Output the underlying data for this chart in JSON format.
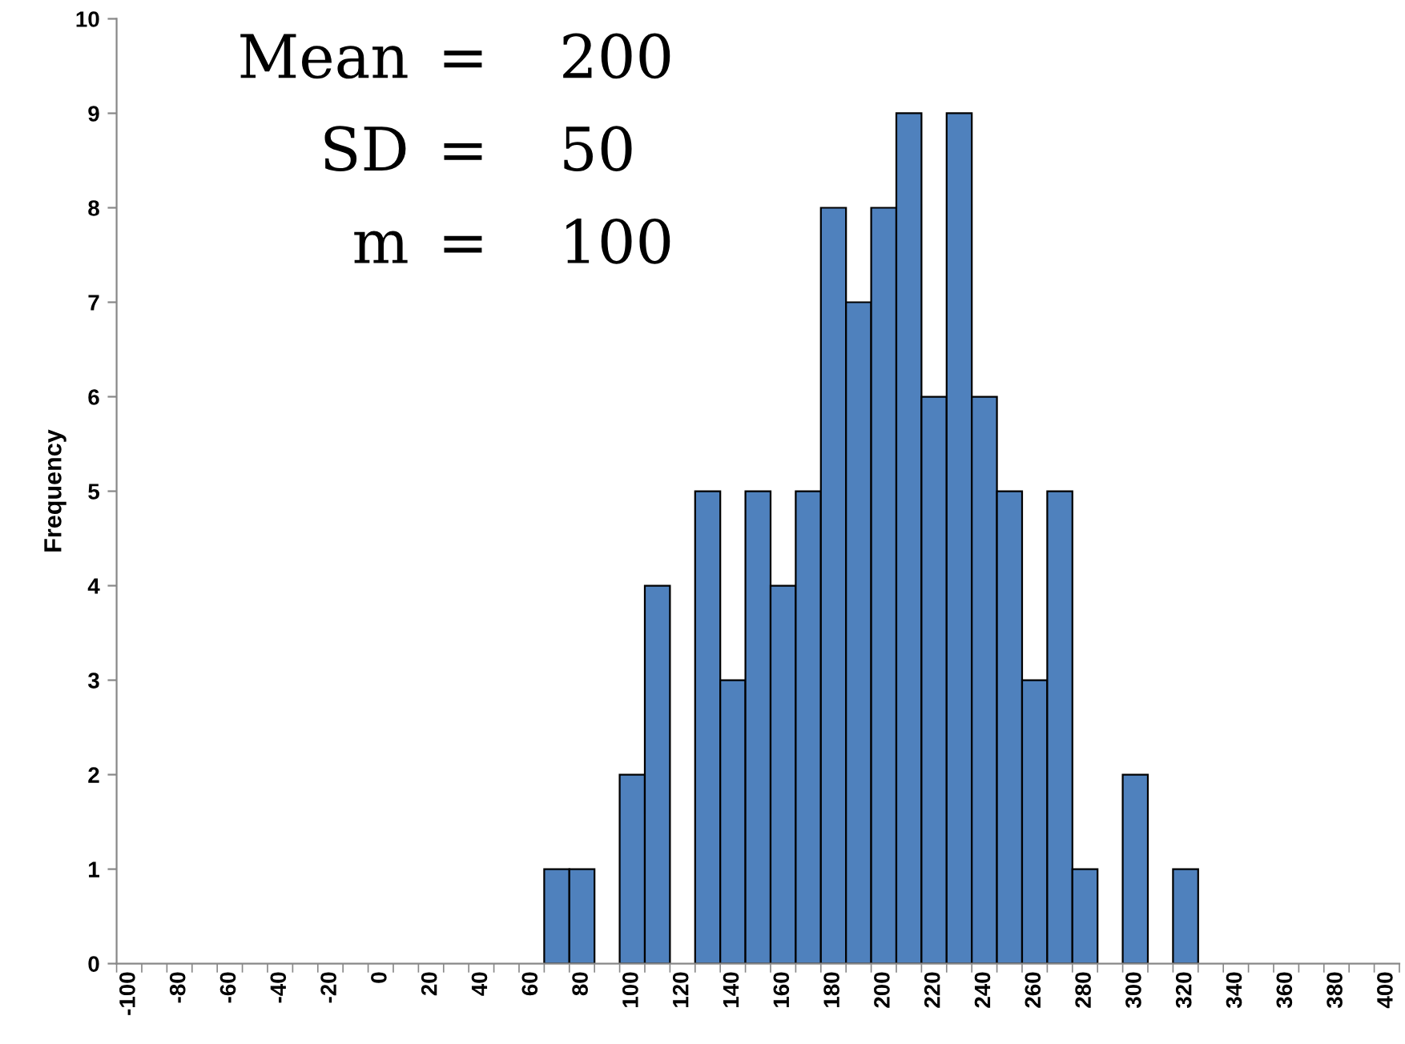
{
  "chart_data": {
    "type": "bar",
    "ylabel": "Frequency",
    "annotations": [
      "Mean = 200",
      "SD = 50",
      "m = 100"
    ],
    "categories": [
      "-100",
      null,
      "-80",
      null,
      "-60",
      null,
      "-40",
      null,
      "-20",
      null,
      "0",
      null,
      "20",
      null,
      "40",
      null,
      "60",
      null,
      "80",
      null,
      "100",
      null,
      "120",
      null,
      "140",
      null,
      "160",
      null,
      "180",
      null,
      "200",
      null,
      "220",
      null,
      "240",
      null,
      "260",
      null,
      "280",
      null,
      "300",
      null,
      "320",
      null,
      "340",
      null,
      "360",
      null,
      "380",
      null,
      "400"
    ],
    "values": [
      0,
      0,
      0,
      0,
      0,
      0,
      0,
      0,
      0,
      0,
      0,
      0,
      0,
      0,
      0,
      0,
      0,
      1,
      1,
      0,
      2,
      4,
      0,
      5,
      3,
      5,
      4,
      5,
      8,
      7,
      8,
      9,
      6,
      9,
      6,
      5,
      3,
      5,
      1,
      0,
      2,
      0,
      1,
      0,
      0,
      0,
      0,
      0,
      0,
      0,
      0
    ],
    "color": "#4f81bd",
    "ylim": [
      0,
      10
    ],
    "yticks": [
      0,
      1,
      2,
      3,
      4,
      5,
      6,
      7,
      8,
      9,
      10
    ],
    "grid": false,
    "legend": false
  }
}
